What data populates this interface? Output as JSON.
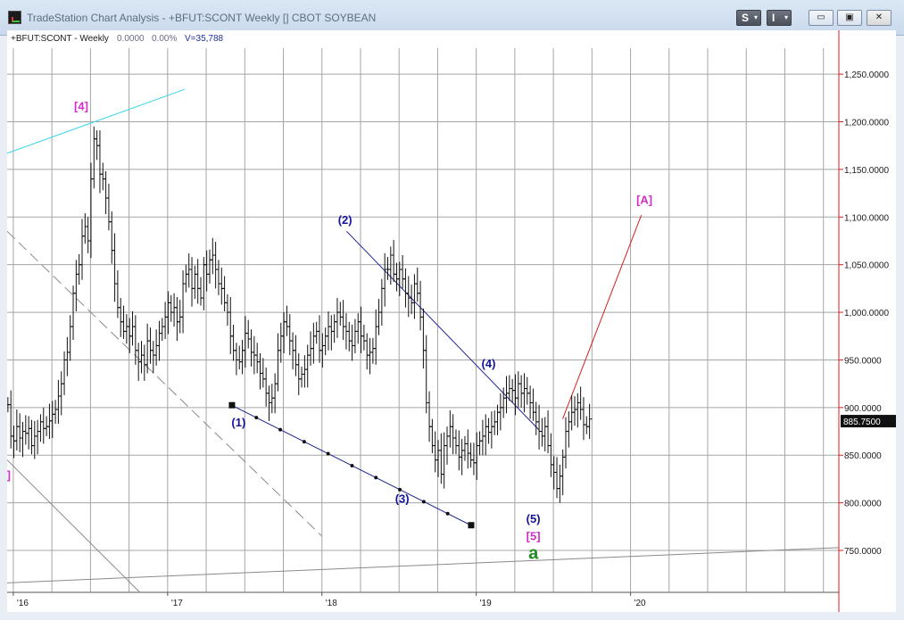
{
  "window": {
    "title": "TradeStation Chart Analysis - +BFUT:SCONT Weekly [] CBOT SOYBEAN",
    "btn_s": "S",
    "btn_i": "I",
    "caret": "▾",
    "min": "▭",
    "restore": "▣",
    "close": "✕"
  },
  "chart_header": {
    "symbol": "+BFUT:SCONT - Weekly",
    "change": "0.0000",
    "pct": "0.00%",
    "volume": "V=35,788"
  },
  "colors": {
    "price_axis": "#d61e1e",
    "wave_blue": "#14149c",
    "wave_magenta": "#d22fc8",
    "wave_green": "#1f8c1f",
    "trend_blue": "#1e2296",
    "trend_cyan": "#36d4e8",
    "projection_red": "#d41f1f",
    "grid": "#a5a5a5"
  },
  "chart_data": {
    "type": "bar",
    "symbol": "+BFUT:SCONT",
    "interval": "Weekly",
    "y_axis_ticks": [
      "1,250.0000",
      "1,200.0000",
      "1,150.0000",
      "1,100.0000",
      "1,050.0000",
      "1,000.0000",
      "950.0000",
      "900.0000",
      "850.0000",
      "800.0000",
      "750.0000"
    ],
    "ylim": [
      706,
      1296
    ],
    "x_axis_ticks": [
      "'16",
      "'17",
      "'18",
      "'19",
      "'20"
    ],
    "x_tick_values": [
      2016,
      2017,
      2018,
      2019,
      2020
    ],
    "xlim": [
      2015.96,
      2021.35
    ],
    "last_price": "885.7500",
    "wave_labels": [
      {
        "text": "[4]",
        "x": 2016.44,
        "y": 1212,
        "color": "magenta"
      },
      {
        "text": "(1)",
        "x": 2017.46,
        "y": 880,
        "color": "blue"
      },
      {
        "text": "(2)",
        "x": 2018.15,
        "y": 1093,
        "color": "blue"
      },
      {
        "text": "(3)",
        "x": 2018.52,
        "y": 800,
        "color": "blue"
      },
      {
        "text": "(4)",
        "x": 2019.08,
        "y": 942,
        "color": "blue"
      },
      {
        "text": "(5)",
        "x": 2019.37,
        "y": 779,
        "color": "blue"
      },
      {
        "text": "[5]",
        "x": 2019.37,
        "y": 761,
        "color": "magenta"
      },
      {
        "text": "a",
        "x": 2019.37,
        "y": 741,
        "color": "green"
      },
      {
        "text": "[A]",
        "x": 2020.09,
        "y": 1114,
        "color": "magenta"
      },
      {
        "text": "]",
        "x": 2015.97,
        "y": 825,
        "color": "magenta"
      }
    ],
    "trendlines": [
      {
        "style": "solid-marked",
        "color": "blue",
        "points": [
          [
            2017.42,
            902
          ],
          [
            2018.97,
            776
          ]
        ]
      },
      {
        "style": "solid",
        "color": "blue",
        "points": [
          [
            2018.16,
            1085
          ],
          [
            2019.41,
            876
          ]
        ]
      },
      {
        "style": "solid",
        "color": "cyan",
        "points": [
          [
            2015.96,
            1167
          ],
          [
            2017.11,
            1234
          ]
        ]
      },
      {
        "style": "dashed",
        "color": "gray",
        "points": [
          [
            2015.96,
            1085
          ],
          [
            2018.0,
            765
          ]
        ]
      },
      {
        "style": "solid",
        "color": "gray",
        "points": [
          [
            2015.96,
            845
          ],
          [
            2016.82,
            706
          ]
        ]
      },
      {
        "style": "solid",
        "color": "gray",
        "points": [
          [
            2015.96,
            716
          ],
          [
            2021.35,
            753
          ]
        ]
      },
      {
        "style": "solid",
        "color": "red",
        "points": [
          [
            2019.56,
            888
          ],
          [
            2020.07,
            1102
          ]
        ]
      }
    ],
    "bars_per_year": 52,
    "bars_start": 2015.965,
    "bars_close": [
      903,
      870,
      865,
      880,
      868,
      875,
      873,
      878,
      860,
      870,
      875,
      885,
      878,
      880,
      886,
      893,
      898,
      912,
      925,
      950,
      958,
      985,
      1020,
      1040,
      1050,
      1080,
      1090,
      1075,
      1140,
      1182,
      1175,
      1145,
      1140,
      1120,
      1095,
      1065,
      1030,
      1005,
      990,
      980,
      985,
      975,
      985,
      960,
      948,
      955,
      945,
      970,
      960,
      955,
      965,
      978,
      985,
      995,
      1010,
      1000,
      1005,
      990,
      995,
      1030,
      1040,
      1045,
      1025,
      1040,
      1025,
      1015,
      1050,
      1040,
      1055,
      1060,
      1045,
      1030,
      1025,
      1010,
      1000,
      975,
      960,
      950,
      948,
      960,
      978,
      972,
      958,
      955,
      948,
      936,
      930,
      915,
      905,
      910,
      925,
      960,
      975,
      990,
      985,
      970,
      960,
      945,
      930,
      935,
      940,
      955,
      962,
      975,
      980,
      960,
      965,
      975,
      985,
      980,
      990,
      1000,
      995,
      985,
      980,
      970,
      965,
      980,
      990,
      975,
      970,
      955,
      958,
      962,
      985,
      1000,
      1025,
      1045,
      1045,
      1060,
      1040,
      1035,
      1045,
      1035,
      1020,
      1015,
      1010,
      1030,
      1020,
      995,
      960,
      905,
      880,
      860,
      845,
      855,
      830,
      860,
      870,
      880,
      868,
      860,
      848,
      855,
      862,
      852,
      845,
      842,
      860,
      865,
      870,
      880,
      874,
      880,
      885,
      895,
      900,
      910,
      915,
      920,
      918,
      910,
      925,
      915,
      920,
      915,
      905,
      895,
      885,
      875,
      870,
      880,
      860,
      840,
      832,
      815,
      828,
      848,
      875,
      885,
      895,
      898,
      905,
      898,
      882,
      880,
      888
    ]
  }
}
